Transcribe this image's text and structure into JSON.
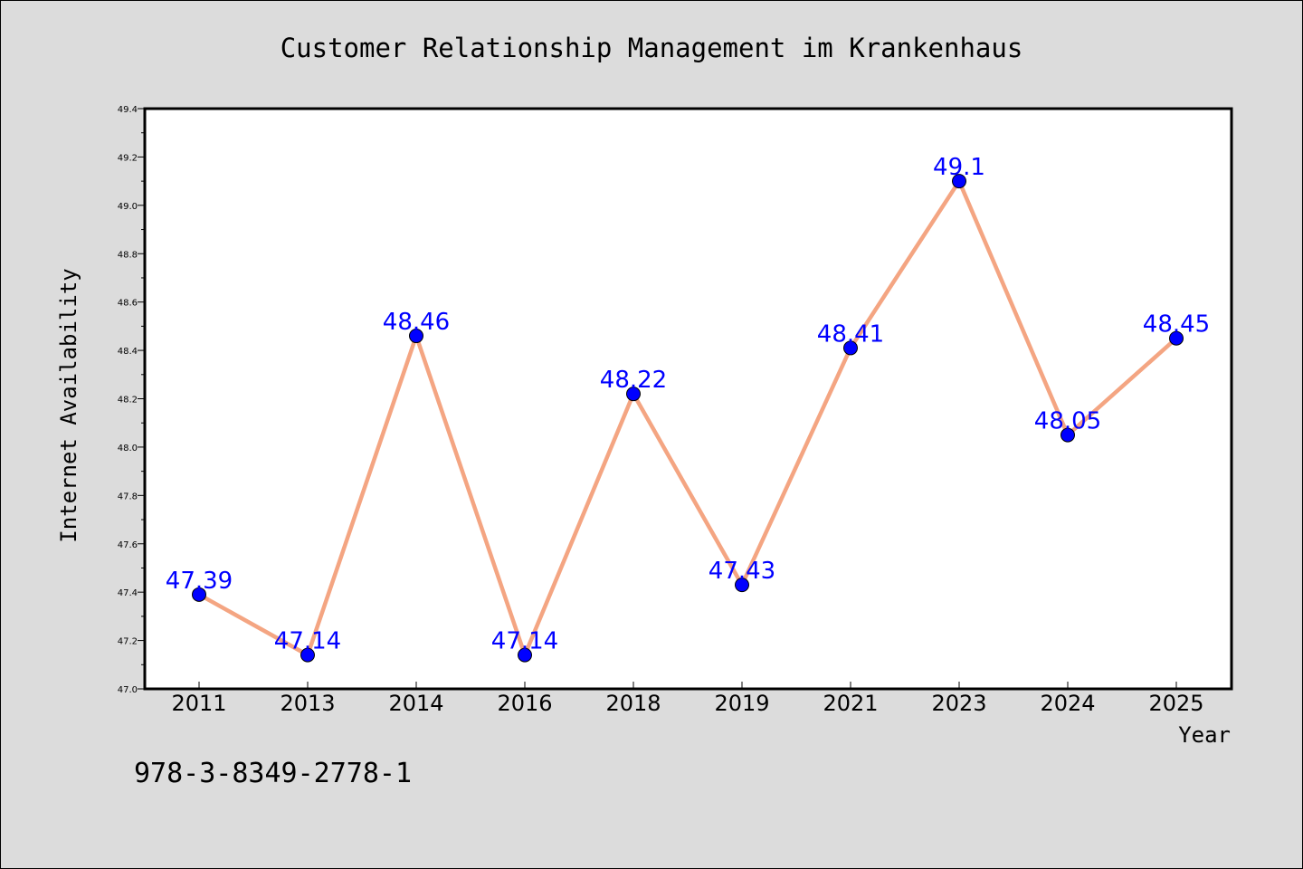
{
  "chart_data": {
    "type": "line",
    "title": "Customer Relationship Management im Krankenhaus",
    "xlabel": "Year",
    "ylabel": "Internet Availability",
    "categories": [
      "2011",
      "2013",
      "2014",
      "2016",
      "2018",
      "2019",
      "2021",
      "2023",
      "2024",
      "2025"
    ],
    "series": [
      {
        "values": [
          47.39,
          47.14,
          48.46,
          47.14,
          48.22,
          47.43,
          48.41,
          49.1,
          48.05,
          48.45
        ],
        "labels": [
          "47.39",
          "47.14",
          "48.46",
          "47.14",
          "48.22",
          "47.43",
          "48.41",
          "49.1",
          "48.05",
          "48.45"
        ]
      }
    ],
    "ylim": [
      47.0,
      49.4
    ],
    "yticks": [
      "47.0",
      "47.2",
      "47.4",
      "47.6",
      "47.8",
      "48.0",
      "48.2",
      "48.4",
      "48.6",
      "48.8",
      "49.0",
      "49.2",
      "49.4"
    ],
    "grid": false,
    "line_color": "#f4a582",
    "marker_color": "#0000ff",
    "label_color": "#0000ff",
    "background_color": "#dcdcdc",
    "plot_background_color": "#ffffff"
  },
  "footer": {
    "code": "978-3-8349-2778-1"
  }
}
